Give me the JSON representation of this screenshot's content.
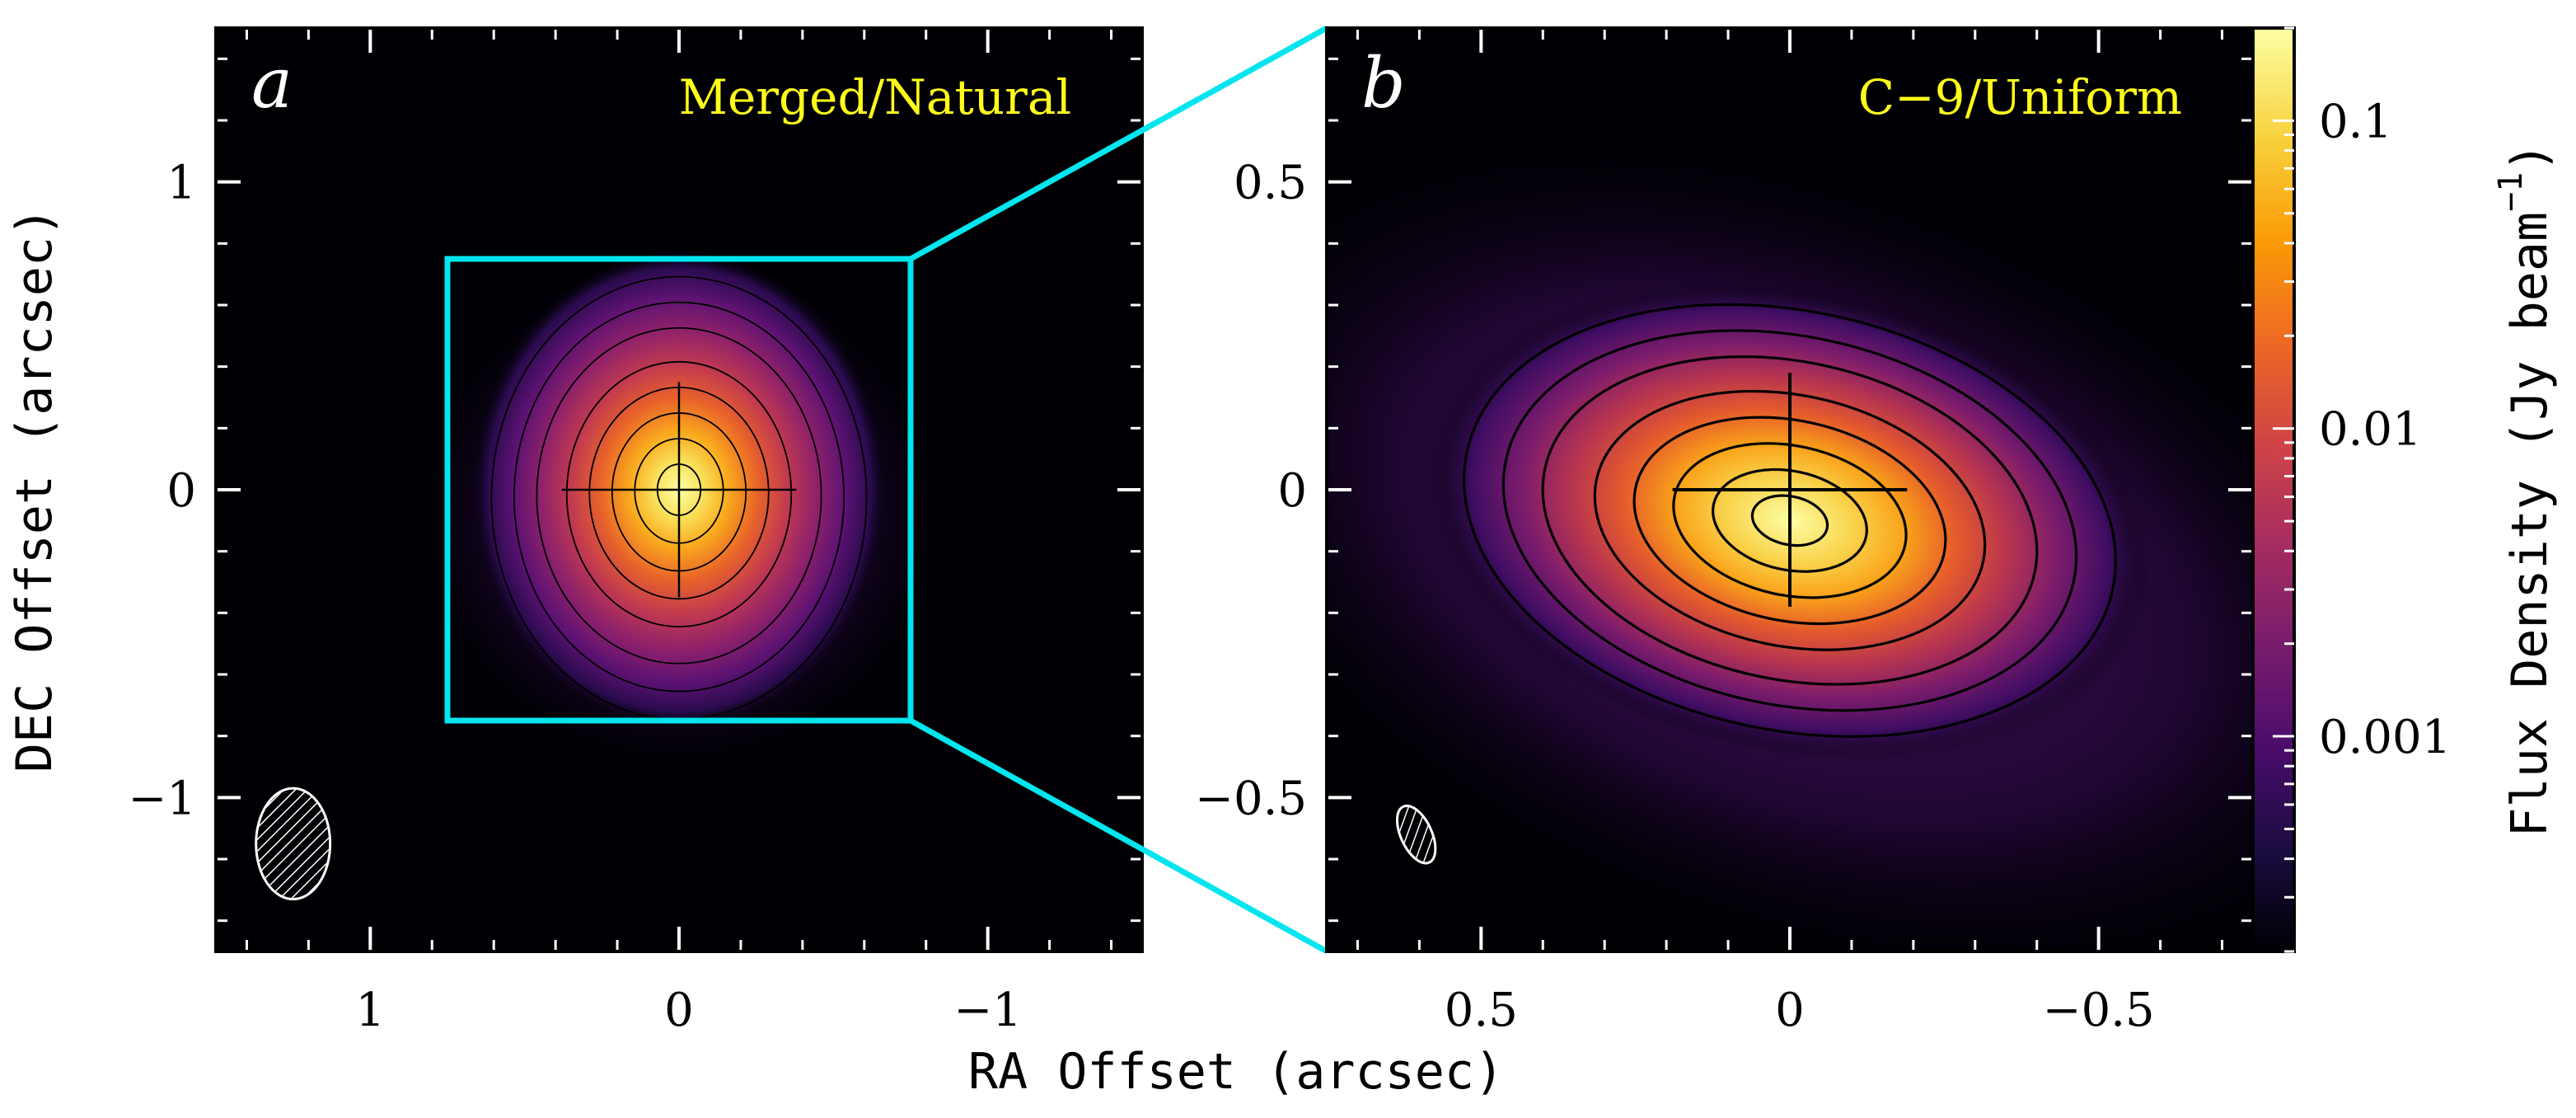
{
  "chart_data": {
    "type": "heatmap",
    "colors": {
      "colormap": [
        "#000004",
        "#1b0c41",
        "#4a0c6b",
        "#781c6d",
        "#a52c60",
        "#cf4446",
        "#ed6925",
        "#fb9b06",
        "#f7d13d",
        "#fcffa4"
      ],
      "zoom_box": "#00e5ee",
      "title_text": "#ffff1a",
      "contour": "#000000"
    },
    "xlabel": "RA Offset (arcsec)",
    "ylabel": "DEC Offset (arcsec)",
    "panels": [
      {
        "letter": "a",
        "title": "Merged/Natural",
        "xlim": [
          1.5,
          -1.5
        ],
        "ylim": [
          -1.5,
          1.5
        ],
        "x_ticks": [
          {
            "value": 1,
            "label": "1"
          },
          {
            "value": 0,
            "label": "0"
          },
          {
            "value": -1,
            "label": "−1"
          }
        ],
        "y_ticks": [
          {
            "value": 1,
            "label": "1"
          },
          {
            "value": 0,
            "label": "0"
          },
          {
            "value": -1,
            "label": "−1"
          }
        ],
        "zoom_box": {
          "x": [
            0.75,
            -0.75
          ],
          "y": [
            -0.75,
            0.75
          ]
        },
        "beam": {
          "x": 1.25,
          "y": -1.15,
          "major": 0.18,
          "minor": 0.12,
          "pa_deg": 0
        },
        "source": {
          "x": 0,
          "y": 0,
          "sigma_x": 0.25,
          "sigma_y": 0.29
        },
        "contour_levels": [
          0.0006,
          0.0012,
          0.0024,
          0.006,
          0.012,
          0.024,
          0.048,
          0.096
        ],
        "cross": {
          "x": 0,
          "y": 0,
          "half_x": 0.38,
          "half_y": 0.35
        }
      },
      {
        "letter": "b",
        "title": "C−9/Uniform",
        "xlim": [
          0.75,
          -0.75
        ],
        "ylim": [
          -0.75,
          0.75
        ],
        "x_ticks": [
          {
            "value": 0.5,
            "label": "0.5"
          },
          {
            "value": 0,
            "label": "0"
          },
          {
            "value": -0.5,
            "label": "−0.5"
          }
        ],
        "y_ticks": [
          {
            "value": 0.5,
            "label": "0.5"
          },
          {
            "value": 0,
            "label": "0"
          },
          {
            "value": -0.5,
            "label": "−0.5"
          }
        ],
        "beam": {
          "x": 0.605,
          "y": -0.56,
          "major": 0.05,
          "minor": 0.025,
          "pa_deg": 25
        },
        "source": {
          "x": 0,
          "y": -0.05,
          "sigma_x": 0.22,
          "sigma_y": 0.14
        },
        "contour_levels": [
          0.0006,
          0.0012,
          0.0024,
          0.006,
          0.012,
          0.024,
          0.048,
          0.096
        ],
        "cross": {
          "x": 0,
          "y": 0,
          "half_x": 0.19,
          "half_y": 0.19
        }
      }
    ],
    "colorbar": {
      "label": "Flux Density (Jy beam",
      "label_exponent": "−1",
      "label_suffix": ")",
      "scale": "log",
      "range": [
        0.0002,
        0.2
      ],
      "ticks": [
        {
          "value": 0.1,
          "label": "0.1"
        },
        {
          "value": 0.01,
          "label": "0.01"
        },
        {
          "value": 0.001,
          "label": "0.001"
        }
      ]
    }
  }
}
